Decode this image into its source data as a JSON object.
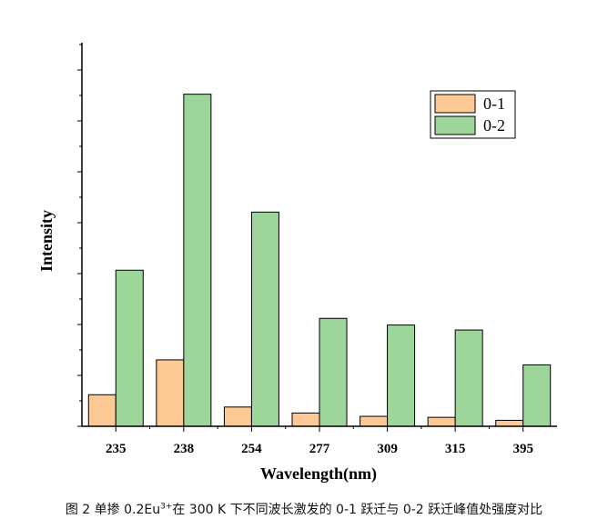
{
  "chart_data": {
    "type": "bar",
    "title": "",
    "xlabel": "Wavelength(nm)",
    "ylabel": "Intensity",
    "categories": [
      "235",
      "238",
      "254",
      "277",
      "309",
      "315",
      "395"
    ],
    "series": [
      {
        "name": "0-1",
        "color": "#FCC894",
        "values": [
          0.095,
          0.2,
          0.058,
          0.04,
          0.03,
          0.027,
          0.018
        ]
      },
      {
        "name": "0-2",
        "color": "#9DD59A",
        "values": [
          0.47,
          1.0,
          0.645,
          0.325,
          0.305,
          0.29,
          0.185
        ]
      }
    ],
    "ylim": [
      0,
      1.155
    ],
    "y_ticks_labeled": false,
    "legend_position": "top-right",
    "grid": false
  },
  "caption": {
    "prefix": "图 2  单掺 0.2Eu",
    "superscript": "3+",
    "suffix": "在 300 K 下不同波长激发的 0-1 跃迁与 0-2 跃迁峰值处强度对比"
  }
}
